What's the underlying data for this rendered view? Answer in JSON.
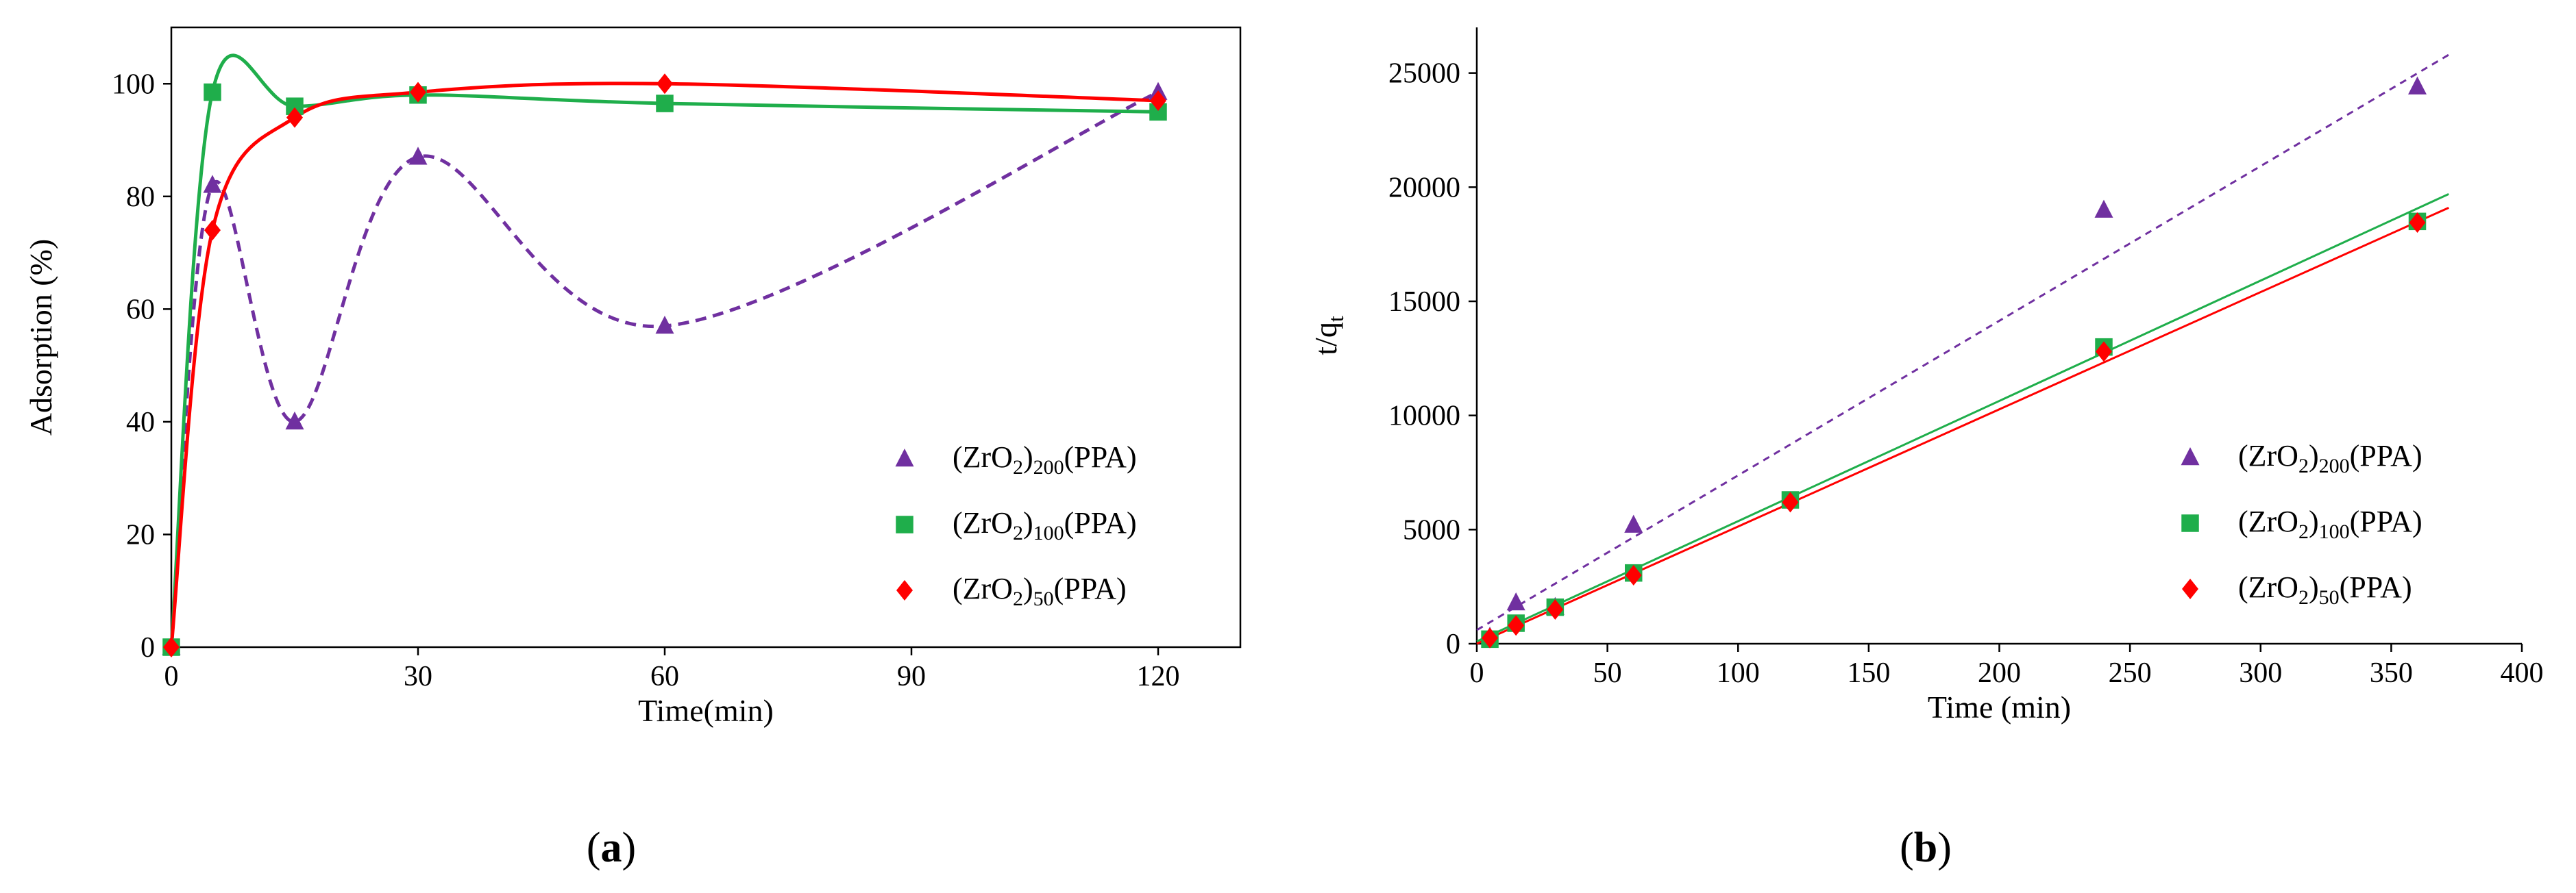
{
  "chart_data": [
    {
      "panel": "a",
      "caption_letter": "a",
      "type": "scatter",
      "xlabel": "Time(min)",
      "ylabel": "Adsorption (%)",
      "xlim": [
        0,
        130
      ],
      "ylim": [
        0,
        110
      ],
      "xticks": [
        0,
        30,
        60,
        90,
        120
      ],
      "yticks": [
        0,
        20,
        40,
        60,
        80,
        100
      ],
      "series": [
        {
          "name_base": "(ZrO",
          "name_sub": "2",
          "name_sub2": "200",
          "name_tail": "(PPA)",
          "marker": "triangle",
          "color": "#7030A0",
          "line_style": "dashed",
          "line_color": "#7030A0",
          "x": [
            0,
            5,
            15,
            30,
            60,
            120
          ],
          "y": [
            0,
            82,
            40,
            87,
            57,
            98.5
          ]
        },
        {
          "name_base": "(ZrO",
          "name_sub": "2",
          "name_sub2": "100",
          "name_tail": "(PPA)",
          "marker": "square",
          "color": "#1FAE4B",
          "line_style": "solid",
          "line_color": "#1FAE4B",
          "x": [
            0,
            5,
            15,
            30,
            60,
            120
          ],
          "y": [
            0,
            98.5,
            96,
            98,
            96.5,
            95
          ]
        },
        {
          "name_base": "(ZrO",
          "name_sub": "2",
          "name_sub2": "50",
          "name_tail": "(PPA)",
          "marker": "diamond",
          "color": "#FF0000",
          "line_style": "solid",
          "line_color": "#FF0000",
          "x": [
            0,
            5,
            15,
            30,
            60,
            120
          ],
          "y": [
            0,
            74,
            94,
            98.5,
            100,
            97
          ]
        }
      ],
      "legend_position": "bottom-right"
    },
    {
      "panel": "b",
      "caption_letter": "b",
      "type": "scatter",
      "xlabel": "Time (min)",
      "ylabel_base": "t/q",
      "ylabel_sub": "t",
      "xlim": [
        0,
        400
      ],
      "ylim": [
        0,
        27000
      ],
      "xticks": [
        0,
        50,
        100,
        150,
        200,
        250,
        300,
        350,
        400
      ],
      "yticks": [
        0,
        5000,
        10000,
        15000,
        20000,
        25000
      ],
      "series": [
        {
          "name_base": "(ZrO",
          "name_sub": "2",
          "name_sub2": "200",
          "name_tail": "(PPA)",
          "marker": "triangle",
          "color": "#7030A0",
          "line_style": "dashed",
          "line_color": "#7030A0",
          "x": [
            5,
            15,
            30,
            60,
            240,
            360
          ],
          "y": [
            300,
            1800,
            1600,
            5200,
            19000,
            24400
          ],
          "fit_x": [
            0,
            372
          ],
          "fit_y": [
            600,
            25800
          ]
        },
        {
          "name_base": "(ZrO",
          "name_sub": "2",
          "name_sub2": "100",
          "name_tail": "(PPA)",
          "marker": "square",
          "color": "#1FAE4B",
          "line_style": "solid",
          "line_color": "#1FAE4B",
          "x": [
            5,
            15,
            30,
            60,
            120,
            240,
            360
          ],
          "y": [
            200,
            900,
            1600,
            3100,
            6300,
            13000,
            18500
          ],
          "fit_x": [
            0,
            372
          ],
          "fit_y": [
            100,
            19700
          ]
        },
        {
          "name_base": "(ZrO",
          "name_sub": "2",
          "name_sub2": "50",
          "name_tail": "(PPA)",
          "marker": "diamond",
          "color": "#FF0000",
          "line_style": "solid",
          "line_color": "#FF0000",
          "x": [
            5,
            15,
            30,
            60,
            120,
            240,
            360
          ],
          "y": [
            250,
            800,
            1500,
            3000,
            6200,
            12800,
            18450
          ],
          "fit_x": [
            0,
            372
          ],
          "fit_y": [
            0,
            19100
          ]
        }
      ],
      "legend_position": "bottom-right"
    }
  ]
}
